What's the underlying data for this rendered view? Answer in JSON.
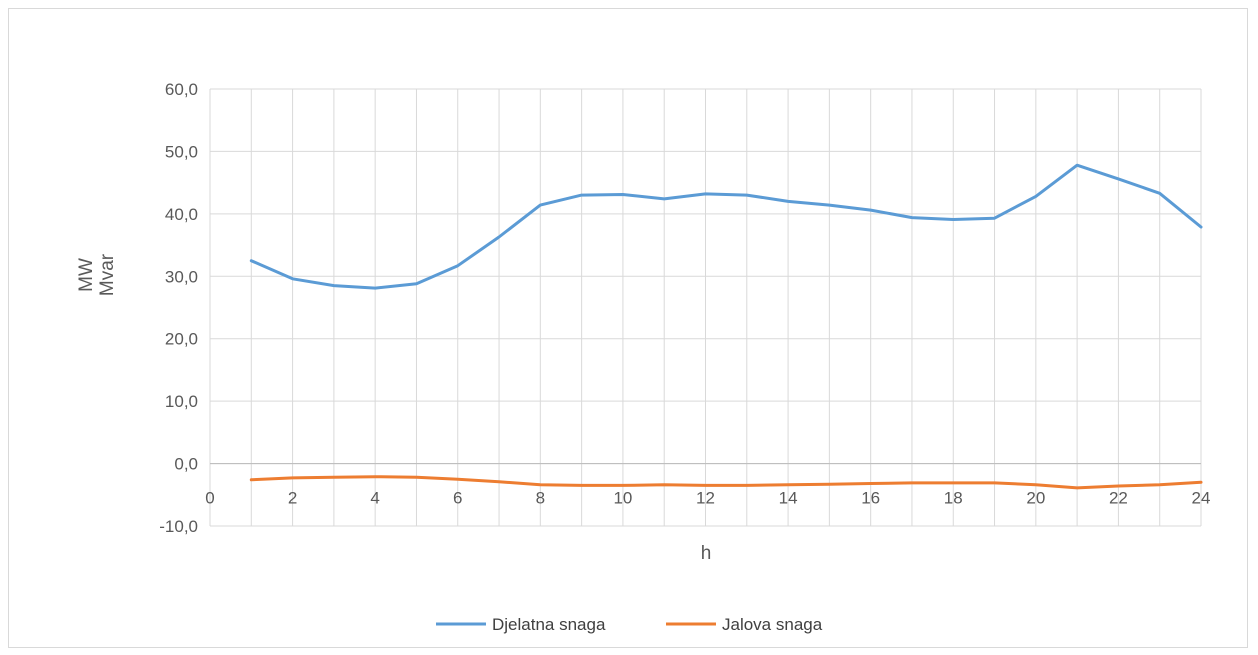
{
  "chart_data": {
    "type": "line",
    "xlabel": "h",
    "ylabel_lines": [
      "MW",
      "Mvar"
    ],
    "xlim": [
      0,
      24
    ],
    "ylim": [
      -10,
      60
    ],
    "x_ticks": [
      0,
      2,
      4,
      6,
      8,
      10,
      12,
      14,
      16,
      18,
      20,
      22,
      24
    ],
    "y_ticks": [
      "-10,0",
      "0,0",
      "10,0",
      "20,0",
      "30,0",
      "40,0",
      "50,0",
      "60,0"
    ],
    "grid": true,
    "legend_position": "bottom",
    "x": [
      1,
      2,
      3,
      4,
      5,
      6,
      7,
      8,
      9,
      10,
      11,
      12,
      13,
      14,
      15,
      16,
      17,
      18,
      19,
      20,
      21,
      22,
      23,
      24
    ],
    "series": [
      {
        "name": "Djelatna snaga",
        "color": "#5b9bd5",
        "values": [
          32.5,
          29.6,
          28.5,
          28.1,
          28.8,
          31.7,
          36.3,
          41.4,
          43.0,
          43.1,
          42.4,
          43.2,
          43.0,
          42.0,
          41.4,
          40.6,
          39.4,
          39.1,
          39.3,
          42.8,
          47.8,
          45.6,
          43.3,
          37.9
        ]
      },
      {
        "name": "Jalova snaga",
        "color": "#ed7d31",
        "values": [
          -2.6,
          -2.3,
          -2.2,
          -2.1,
          -2.2,
          -2.5,
          -2.9,
          -3.4,
          -3.5,
          -3.5,
          -3.4,
          -3.5,
          -3.5,
          -3.4,
          -3.3,
          -3.2,
          -3.1,
          -3.1,
          -3.1,
          -3.4,
          -3.9,
          -3.6,
          -3.4,
          -3.0
        ]
      }
    ]
  }
}
